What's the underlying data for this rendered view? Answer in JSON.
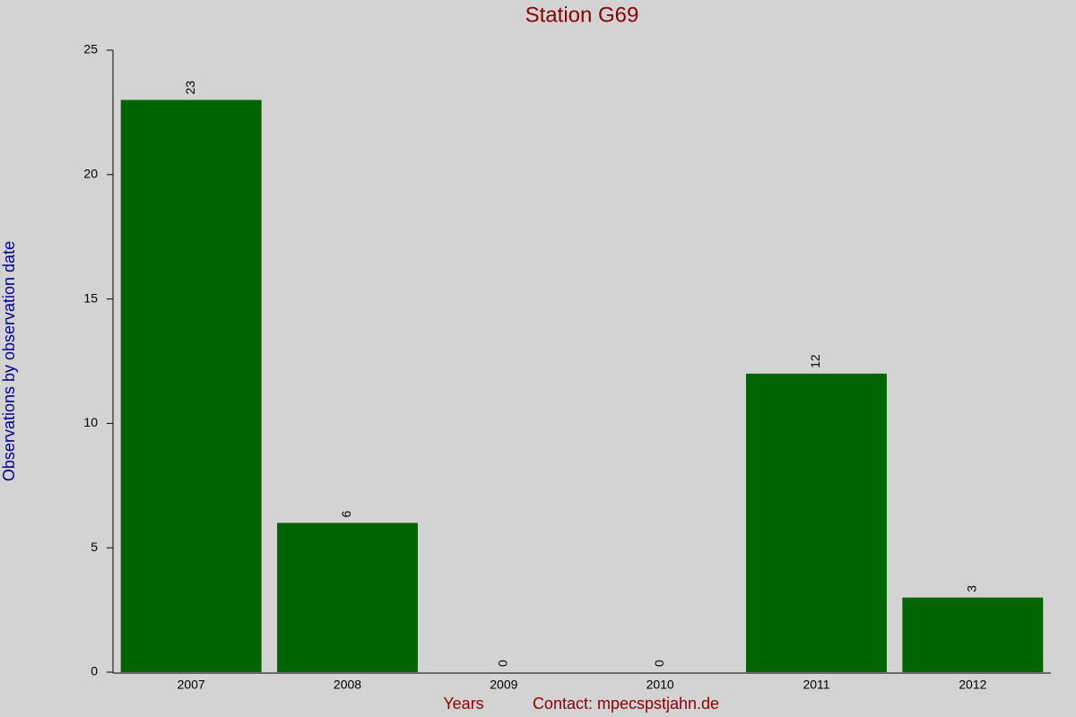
{
  "chart_data": {
    "type": "bar",
    "title": "Station G69",
    "y_label": "Observations by observation date",
    "x_label": "Years",
    "annotation": "Contact: mpecspstjahn.de",
    "categories": [
      "2007",
      "2008",
      "2009",
      "2010",
      "2011",
      "2012"
    ],
    "values": [
      23,
      6,
      0,
      0,
      12,
      3
    ],
    "color": "#006400",
    "ylim": [
      0,
      25
    ],
    "yticks": [
      0,
      5,
      10,
      15,
      20,
      25
    ],
    "grid": false
  }
}
